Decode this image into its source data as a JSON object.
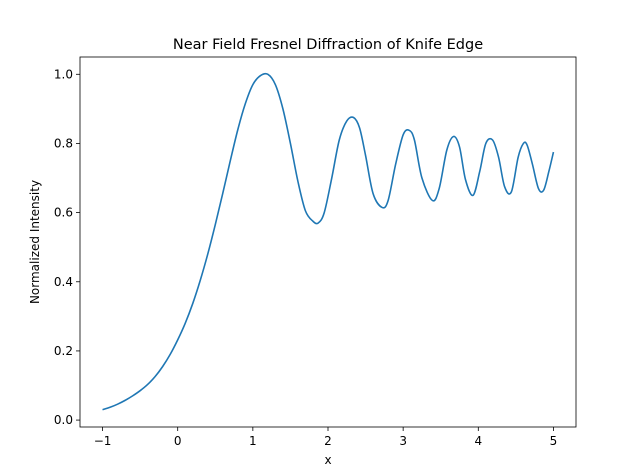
{
  "chart_data": {
    "type": "line",
    "title": "Near Field Fresnel Diffraction of Knife Edge",
    "xlabel": "x",
    "ylabel": "Normalized Intensity",
    "xlim": [
      -1.3,
      5.3
    ],
    "ylim": [
      -0.02,
      1.05
    ],
    "x_ticks": [
      -1,
      0,
      1,
      2,
      3,
      4,
      5
    ],
    "x_tick_labels": [
      "−1",
      "0",
      "1",
      "2",
      "3",
      "4",
      "5"
    ],
    "y_ticks": [
      0.0,
      0.2,
      0.4,
      0.6,
      0.8,
      1.0
    ],
    "y_tick_labels": [
      "0.0",
      "0.2",
      "0.4",
      "0.6",
      "0.8",
      "1.0"
    ],
    "grid": false,
    "series": [
      {
        "color": "#1f77b4",
        "x": [
          -1.0,
          -0.9,
          -0.8,
          -0.7,
          -0.6,
          -0.5,
          -0.4,
          -0.3,
          -0.2,
          -0.1,
          0.0,
          0.1,
          0.2,
          0.3,
          0.4,
          0.5,
          0.6,
          0.7,
          0.8,
          0.9,
          1.0,
          1.1,
          1.2,
          1.3,
          1.4,
          1.5,
          1.6,
          1.7,
          1.8,
          1.87,
          1.95,
          2.05,
          2.15,
          2.25,
          2.34,
          2.42,
          2.5,
          2.6,
          2.72,
          2.8,
          2.9,
          3.0,
          3.08,
          3.15,
          3.25,
          3.39,
          3.48,
          3.58,
          3.67,
          3.75,
          3.83,
          3.93,
          4.02,
          4.1,
          4.19,
          4.27,
          4.35,
          4.44,
          4.53,
          4.6,
          4.65,
          4.72,
          4.8,
          4.87,
          4.94,
          5.0
        ],
        "y": [
          0.03,
          0.037,
          0.046,
          0.057,
          0.07,
          0.085,
          0.103,
          0.126,
          0.155,
          0.19,
          0.232,
          0.28,
          0.337,
          0.404,
          0.48,
          0.565,
          0.656,
          0.75,
          0.84,
          0.915,
          0.97,
          0.996,
          1.0,
          0.97,
          0.9,
          0.8,
          0.69,
          0.605,
          0.575,
          0.57,
          0.6,
          0.7,
          0.81,
          0.865,
          0.875,
          0.845,
          0.765,
          0.655,
          0.615,
          0.635,
          0.74,
          0.825,
          0.838,
          0.81,
          0.7,
          0.635,
          0.67,
          0.78,
          0.82,
          0.79,
          0.695,
          0.65,
          0.72,
          0.8,
          0.81,
          0.76,
          0.675,
          0.66,
          0.76,
          0.8,
          0.795,
          0.74,
          0.67,
          0.665,
          0.72,
          0.775
        ]
      }
    ]
  }
}
